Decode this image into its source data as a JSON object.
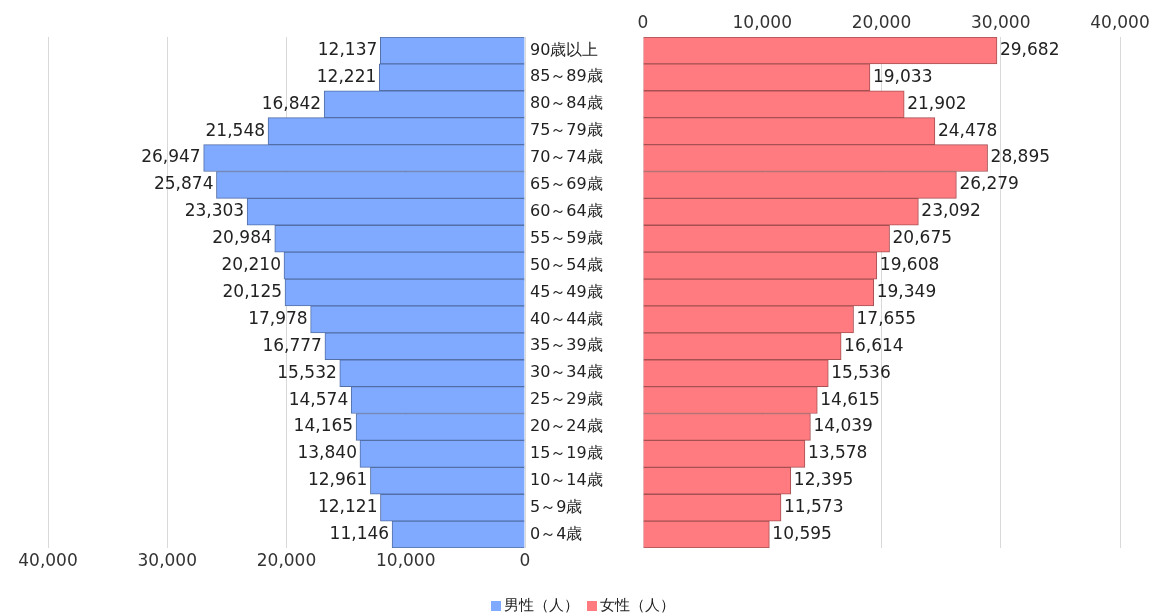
{
  "chart_data": [
    {
      "type": "bar",
      "orientation": "horizontal",
      "categories": [
        null,
        null,
        null,
        null,
        null,
        null,
        null,
        null,
        null,
        null,
        null,
        null,
        null,
        null,
        null,
        null,
        null,
        null,
        null
      ],
      "series": [
        {
          "name": "男性（人）",
          "color": "#7faaff",
          "values": [
            12137,
            12221,
            16842,
            21548,
            26947,
            25874,
            23303,
            20984,
            20210,
            20125,
            17978,
            16777,
            15532,
            14574,
            14165,
            13840,
            12961,
            12121,
            11146
          ],
          "value_labels": [
            "12,137",
            "12,221",
            "16,842",
            "21,548",
            "26,947",
            "25,874",
            "23,303",
            "20,984",
            "20,210",
            "20,125",
            "17,978",
            "16,777",
            "15,532",
            "14,574",
            "14,165",
            "13,840",
            "12,961",
            "12,121",
            "11,146"
          ]
        }
      ],
      "xlim": [
        40000,
        0
      ],
      "xticks": [
        {
          "value": 40000,
          "label": "40,000"
        },
        {
          "value": 30000,
          "label": "30,000"
        },
        {
          "value": 20000,
          "label": "20,000"
        },
        {
          "value": 10000,
          "label": "10,000"
        },
        0
      ],
      "grid": "x",
      "legend": "bottom",
      "tick_labels": "x"
    },
    {
      "type": "bar",
      "orientation": "horizontal",
      "categories": [
        "90歳以上",
        "85～89歳",
        "80～84歳",
        "75～79歳",
        "70～74歳",
        "65～69歳",
        "60～64歳",
        "55～59歳",
        "50～54歳",
        "45～49歳",
        "40～44歳",
        "35～39歳",
        "30～34歳",
        "25～29歳",
        "20～24歳",
        "15～19歳",
        "10～14歳",
        "5～9歳",
        "0～4歳"
      ],
      "series": [
        {
          "name": "女性（人）",
          "color": "#ff7b7f",
          "values": [
            29682,
            19033,
            21902,
            24478,
            28895,
            26279,
            23092,
            20675,
            19608,
            19349,
            17655,
            16614,
            15536,
            14615,
            14039,
            13578,
            12395,
            11573,
            10595
          ],
          "value_labels": [
            "29,682",
            "19,033",
            "21,902",
            "24,478",
            "28,895",
            "26,279",
            "23,092",
            "20,675",
            "19,608",
            "19,349",
            "17,655",
            "16,614",
            "15,536",
            "14,615",
            "14,039",
            "13,578",
            "12,395",
            "11,573",
            "10,595"
          ]
        }
      ],
      "xlim": [
        0,
        40000
      ],
      "xticks": [
        0,
        {
          "value": 10000,
          "label": "10,000"
        },
        {
          "value": 20000,
          "label": "20,000"
        },
        {
          "value": 30000,
          "label": "30,000"
        },
        {
          "value": 40000,
          "label": "40,000"
        }
      ],
      "grid": "x",
      "legend": "bottom"
    }
  ]
}
